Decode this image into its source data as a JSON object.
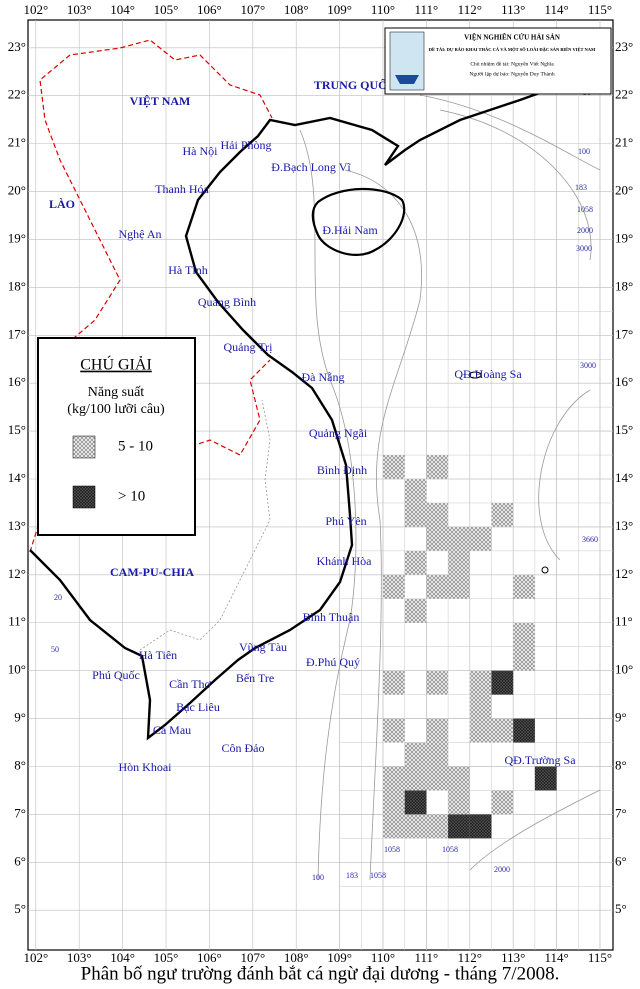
{
  "map": {
    "caption": "Phân bố ngư trường đánh bắt cá ngừ đại dương - tháng 7/2008.",
    "header": {
      "institute": "VIỆN NGHIÊN CỨU HẢI SẢN",
      "project": "ĐỀ TÀI: DỰ BÁO KHAI THÁC CÁ VÀ MỘT SỐ LOÀI ĐẶC SẢN BIỂN VIỆT NAM",
      "lead": "Chủ nhiệm đề tài: Nguyễn Viết Nghĩa",
      "forecaster": "Người lập dự báo: Nguyễn Duy Thành"
    },
    "legend": {
      "title": "CHÚ GIẢI",
      "subtitle": "Năng suất",
      "unit": "(kg/100 lưỡi câu)",
      "items": [
        {
          "label": "5 - 10",
          "color": "#9a9a9a"
        },
        {
          "label": "> 10",
          "color": "#1e1e1e"
        }
      ]
    },
    "xlim": [
      101.82,
      115.3
    ],
    "ylim": [
      4.17,
      23.58
    ],
    "xticks": [
      {
        "value": 102,
        "label": "102°"
      },
      {
        "value": 103,
        "label": "103°"
      },
      {
        "value": 104,
        "label": "104°"
      },
      {
        "value": 105,
        "label": "105°"
      },
      {
        "value": 106,
        "label": "106°"
      },
      {
        "value": 107,
        "label": "107°"
      },
      {
        "value": 108,
        "label": "108°"
      },
      {
        "value": 109,
        "label": "109°"
      },
      {
        "value": 110,
        "label": "110°"
      },
      {
        "value": 111,
        "label": "111°"
      },
      {
        "value": 112,
        "label": "112°"
      },
      {
        "value": 113,
        "label": "113°"
      },
      {
        "value": 114,
        "label": "114°"
      },
      {
        "value": 115,
        "label": "115°"
      }
    ],
    "yticks": [
      {
        "value": 5,
        "label": "5°"
      },
      {
        "value": 6,
        "label": "6°"
      },
      {
        "value": 7,
        "label": "7°"
      },
      {
        "value": 8,
        "label": "8°"
      },
      {
        "value": 9,
        "label": "9°"
      },
      {
        "value": 10,
        "label": "10°"
      },
      {
        "value": 11,
        "label": "11°"
      },
      {
        "value": 12,
        "label": "12°"
      },
      {
        "value": 13,
        "label": "13°"
      },
      {
        "value": 14,
        "label": "14°"
      },
      {
        "value": 15,
        "label": "15°"
      },
      {
        "value": 16,
        "label": "16°"
      },
      {
        "value": 17,
        "label": "17°"
      },
      {
        "value": 18,
        "label": "18°"
      },
      {
        "value": 19,
        "label": "19°"
      },
      {
        "value": 20,
        "label": "20°"
      },
      {
        "value": 21,
        "label": "21°"
      },
      {
        "value": 22,
        "label": "22°"
      },
      {
        "value": 23,
        "label": "23°"
      }
    ],
    "places": [
      "VIỆT NAM",
      "TRUNG QUỐC",
      "LÀO",
      "CAM-PU-CHIA",
      "Hà Nội",
      "Hải Phòng",
      "Đ.Bạch Long Vĩ",
      "Thanh Hóa",
      "Nghệ An",
      "Đ.Hải Nam",
      "Hà Tĩnh",
      "Quảng Bình",
      "Quảng Trị",
      "Đà Nẵng",
      "QĐ.Hoàng Sa",
      "Quảng Ngãi",
      "Bình Định",
      "Phú Yên",
      "Khánh Hòa",
      "Bình Thuận",
      "Vũng Tàu",
      "Đ.Phú Quý",
      "Bến Tre",
      "Hà Tiên",
      "Phú Quốc",
      "Cần Thơ",
      "Bạc Liêu",
      "Cà Mau",
      "Côn Đảo",
      "Hòn Khoai",
      "QĐ.Trường Sa"
    ],
    "depth_labels": [
      "20",
      "50",
      "100",
      "183",
      "1058",
      "2000",
      "3000",
      "3000",
      "3660",
      "20",
      "50",
      "100",
      "183",
      "1058",
      "1058",
      "1058",
      "2000"
    ],
    "cells": [
      {
        "lon": 110,
        "lat": 14,
        "level": 0
      },
      {
        "lon": 111,
        "lat": 14,
        "level": 0
      },
      {
        "lon": 110.5,
        "lat": 13.5,
        "level": 0
      },
      {
        "lon": 110.5,
        "lat": 13,
        "level": 0
      },
      {
        "lon": 111,
        "lat": 13,
        "level": 0
      },
      {
        "lon": 112.5,
        "lat": 13,
        "level": 0
      },
      {
        "lon": 111,
        "lat": 12.5,
        "level": 0
      },
      {
        "lon": 111.5,
        "lat": 12.5,
        "level": 0
      },
      {
        "lon": 112,
        "lat": 12.5,
        "level": 0
      },
      {
        "lon": 110.5,
        "lat": 12,
        "level": 0
      },
      {
        "lon": 111.5,
        "lat": 12,
        "level": 0
      },
      {
        "lon": 110,
        "lat": 11.5,
        "level": 0
      },
      {
        "lon": 111,
        "lat": 11.5,
        "level": 0
      },
      {
        "lon": 111.5,
        "lat": 11.5,
        "level": 0
      },
      {
        "lon": 113,
        "lat": 11.5,
        "level": 0
      },
      {
        "lon": 110.5,
        "lat": 11,
        "level": 0
      },
      {
        "lon": 113,
        "lat": 10.5,
        "level": 0
      },
      {
        "lon": 113,
        "lat": 10,
        "level": 0
      },
      {
        "lon": 110,
        "lat": 9.5,
        "level": 0
      },
      {
        "lon": 111,
        "lat": 9.5,
        "level": 0
      },
      {
        "lon": 112,
        "lat": 9.5,
        "level": 0
      },
      {
        "lon": 112.5,
        "lat": 9.5,
        "level": 1
      },
      {
        "lon": 112,
        "lat": 9,
        "level": 0
      },
      {
        "lon": 110,
        "lat": 8.5,
        "level": 0
      },
      {
        "lon": 111,
        "lat": 8.5,
        "level": 0
      },
      {
        "lon": 112,
        "lat": 8.5,
        "level": 0
      },
      {
        "lon": 112.5,
        "lat": 8.5,
        "level": 0
      },
      {
        "lon": 113,
        "lat": 8.5,
        "level": 1
      },
      {
        "lon": 110.5,
        "lat": 8,
        "level": 0
      },
      {
        "lon": 111,
        "lat": 8,
        "level": 0
      },
      {
        "lon": 110,
        "lat": 7.5,
        "level": 0
      },
      {
        "lon": 110.5,
        "lat": 7.5,
        "level": 0
      },
      {
        "lon": 111,
        "lat": 7.5,
        "level": 0
      },
      {
        "lon": 111.5,
        "lat": 7.5,
        "level": 0
      },
      {
        "lon": 113.5,
        "lat": 7.5,
        "level": 1
      },
      {
        "lon": 110,
        "lat": 7,
        "level": 0
      },
      {
        "lon": 110.5,
        "lat": 7,
        "level": 1
      },
      {
        "lon": 111.5,
        "lat": 7,
        "level": 0
      },
      {
        "lon": 112.5,
        "lat": 7,
        "level": 0
      },
      {
        "lon": 110,
        "lat": 6.5,
        "level": 0
      },
      {
        "lon": 110.5,
        "lat": 6.5,
        "level": 0
      },
      {
        "lon": 111,
        "lat": 6.5,
        "level": 0
      },
      {
        "lon": 111.5,
        "lat": 6.5,
        "level": 1
      },
      {
        "lon": 112,
        "lat": 6.5,
        "level": 1
      }
    ]
  }
}
